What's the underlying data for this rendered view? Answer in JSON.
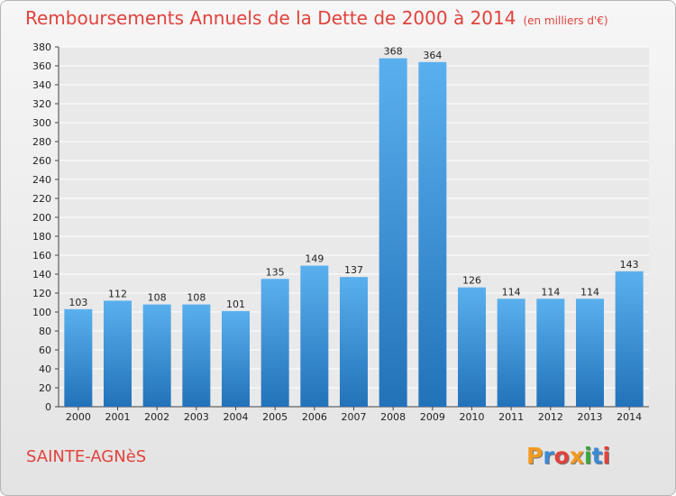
{
  "title": "Remboursements Annuels de la Dette de 2000 à 2014",
  "subtitle": "(en milliers d'€)",
  "place": "SAINTE-AGNèS",
  "logo": {
    "text": "Proxiti",
    "colors": [
      "#f39a1e",
      "#3b8ad6",
      "#e2423c",
      "#f39a1e",
      "#39a83a",
      "#3b8ad6",
      "#e2423c"
    ]
  },
  "colors": {
    "accent": "#e2423c",
    "bar_top": "#5ab0ee",
    "bar_bottom": "#2272b9",
    "grid": "#ffffff",
    "text": "#222222"
  },
  "chart_data": {
    "type": "bar",
    "categories": [
      "2000",
      "2001",
      "2002",
      "2003",
      "2004",
      "2005",
      "2006",
      "2007",
      "2008",
      "2009",
      "2010",
      "2011",
      "2012",
      "2013",
      "2014"
    ],
    "values": [
      103,
      112,
      108,
      108,
      101,
      135,
      149,
      137,
      368,
      364,
      126,
      114,
      114,
      114,
      143
    ],
    "ylim": [
      0,
      380
    ],
    "yticks": [
      0,
      20,
      40,
      60,
      80,
      100,
      120,
      140,
      160,
      180,
      200,
      220,
      240,
      260,
      280,
      300,
      320,
      340,
      360,
      380
    ],
    "grid": true,
    "data_labels": true
  }
}
